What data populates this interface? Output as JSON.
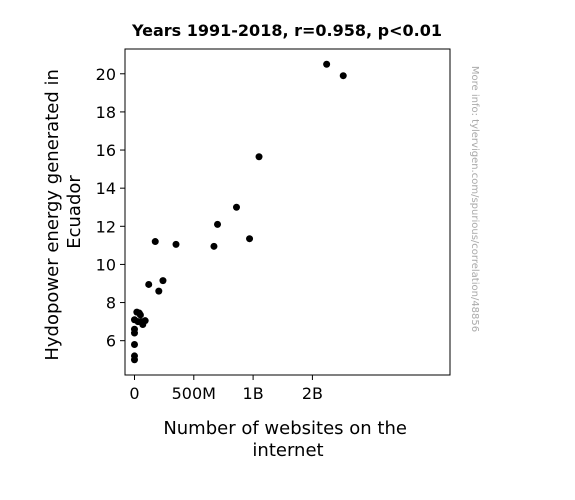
{
  "chart_data": {
    "type": "scatter",
    "title": "Years 1991-2018, r=0.958, p<0.01",
    "xlabel_lines": [
      "Number of websites on the",
      "internet"
    ],
    "ylabel_lines": [
      "Hydopower energy generated in",
      "Ecuador"
    ],
    "watermark": "More info: tylervigen.com/spurious/correlation/48856",
    "xlim": [
      -80000000,
      2660000000
    ],
    "ylim": [
      4.2,
      21.3
    ],
    "x_ticks": [
      {
        "value": 0,
        "label": "0"
      },
      {
        "value": 500000000,
        "label": "500M"
      },
      {
        "value": 1000000000,
        "label": "1B"
      },
      {
        "value": 1500000000,
        "label": "2B"
      }
    ],
    "y_ticks": [
      {
        "value": 6,
        "label": "6"
      },
      {
        "value": 8,
        "label": "8"
      },
      {
        "value": 10,
        "label": "10"
      },
      {
        "value": 12,
        "label": "12"
      },
      {
        "value": 14,
        "label": "14"
      },
      {
        "value": 16,
        "label": "16"
      },
      {
        "value": 18,
        "label": "18"
      },
      {
        "value": 20,
        "label": "20"
      }
    ],
    "point_color": "#000000",
    "points": [
      {
        "x": 0,
        "y": 5.0
      },
      {
        "x": 0,
        "y": 5.2
      },
      {
        "x": 0,
        "y": 5.8
      },
      {
        "x": 0,
        "y": 6.4
      },
      {
        "x": 0,
        "y": 6.6
      },
      {
        "x": 0,
        "y": 7.1
      },
      {
        "x": 20000000,
        "y": 7.5
      },
      {
        "x": 30000000,
        "y": 7.0
      },
      {
        "x": 40000000,
        "y": 7.45
      },
      {
        "x": 50000000,
        "y": 7.35
      },
      {
        "x": 60000000,
        "y": 7.0
      },
      {
        "x": 70000000,
        "y": 6.85
      },
      {
        "x": 90000000,
        "y": 7.05
      },
      {
        "x": 120000000,
        "y": 8.95
      },
      {
        "x": 175000000,
        "y": 11.2
      },
      {
        "x": 205000000,
        "y": 8.6
      },
      {
        "x": 240000000,
        "y": 9.15
      },
      {
        "x": 350000000,
        "y": 11.05
      },
      {
        "x": 670000000,
        "y": 10.95
      },
      {
        "x": 700000000,
        "y": 12.1
      },
      {
        "x": 860000000,
        "y": 13.0
      },
      {
        "x": 970000000,
        "y": 11.35
      },
      {
        "x": 1050000000,
        "y": 15.65
      },
      {
        "x": 1620000000,
        "y": 20.5
      },
      {
        "x": 1760000000,
        "y": 19.9
      }
    ]
  }
}
